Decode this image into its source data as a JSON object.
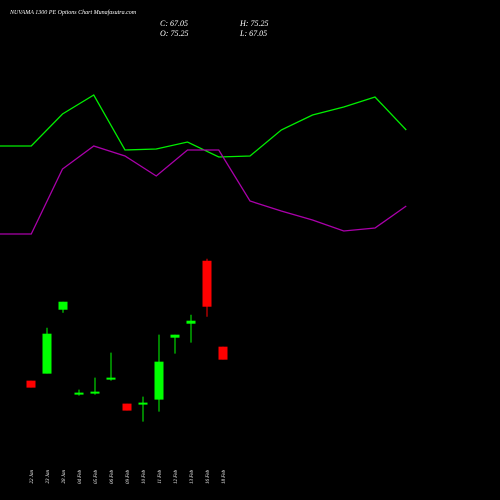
{
  "chart_data": [
    {
      "type": "candlestick",
      "title": "NUVAMA 1300 PE Options Chart Munafasutra.com",
      "readout_labels": [
        "C:",
        "H:",
        "O:",
        "L:"
      ],
      "categories": [
        "22 Jan",
        "23 Jan",
        "28 Jan",
        "04 Feb",
        "05 Feb",
        "06 Feb",
        "09 Feb",
        "10 Feb",
        "11 Feb",
        "12 Feb",
        "13 Feb",
        "16 Feb",
        "18 Feb"
      ],
      "open": [
        53.83,
        58.24,
        98.56,
        45.01,
        45.64,
        54.46,
        39.34,
        38.71,
        41.86,
        80.92,
        89.74,
        129.43,
        75.25
      ],
      "high": [
        53.83,
        87.22,
        103.6,
        48.16,
        55.72,
        71.47,
        39.34,
        43.75,
        82.81,
        82.81,
        95.41,
        130.69,
        75.25
      ],
      "low": [
        49.42,
        58.24,
        96.67,
        44.38,
        45.01,
        53.83,
        34.93,
        28.0,
        34.3,
        70.84,
        77.77,
        94.15,
        67.05
      ],
      "close": [
        49.42,
        83.44,
        103.6,
        46.27,
        46.9,
        55.72,
        34.93,
        39.97,
        65.8,
        82.81,
        91.63,
        100.45,
        67.05
      ],
      "up_color": "#00ff00",
      "down_color": "#ff0000",
      "ylim": [
        0,
        140
      ]
    },
    {
      "type": "line",
      "ylim": [
        0,
        100
      ],
      "series": [
        {
          "color": "#00ee00",
          "values": [
            41.6,
            41.6,
            54.4,
            62,
            40,
            40.4,
            43.2,
            37.2,
            37.6,
            48,
            54,
            57.2,
            61.2,
            48
          ]
        },
        {
          "color": "#aa00aa",
          "values": [
            6.4,
            6.4,
            32.4,
            41.6,
            37.6,
            29.6,
            40,
            40,
            19.6,
            15.6,
            12,
            7.6,
            8.8,
            17.6
          ]
        }
      ]
    }
  ]
}
